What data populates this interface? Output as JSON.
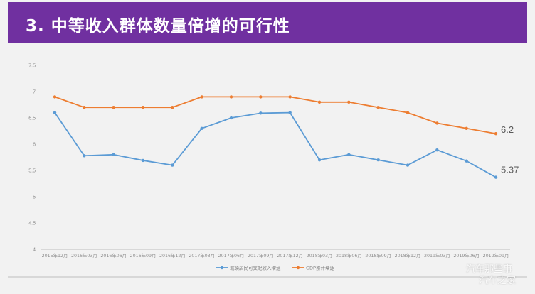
{
  "header": {
    "title": "3. 中等收入群体数量倍增的可行性"
  },
  "watermark": {
    "line1": "汽车那些事",
    "line2": "汽车之家"
  },
  "colors": {
    "header_bg": "#7030a0",
    "series_blue": "#5b9bd5",
    "series_orange": "#ed7d31"
  },
  "chart_data": {
    "type": "line",
    "categories": [
      "2015年12月",
      "2016年03月",
      "2016年06月",
      "2016年09月",
      "2016年12月",
      "2017年03月",
      "2017年06月",
      "2017年09月",
      "2017年12月",
      "2018年03月",
      "2018年06月",
      "2018年09月",
      "2018年12月",
      "2019年03月",
      "2019年06月",
      "2019年09月"
    ],
    "ylim": [
      4,
      7.5
    ],
    "yticks": [
      "4",
      "4.5",
      "5",
      "5.5",
      "6",
      "6.5",
      "7",
      "7.5"
    ],
    "grid": false,
    "legend_position": "bottom",
    "series": [
      {
        "name": "城镇居民可支配收入增速",
        "color": "#5b9bd5",
        "values": [
          6.6,
          5.78,
          5.8,
          5.69,
          5.6,
          6.3,
          6.5,
          6.59,
          6.6,
          5.7,
          5.8,
          5.7,
          5.6,
          5.89,
          5.68,
          5.37
        ],
        "end_label": "5.37"
      },
      {
        "name": "GDP累计增速",
        "color": "#ed7d31",
        "values": [
          6.9,
          6.7,
          6.7,
          6.7,
          6.7,
          6.9,
          6.9,
          6.9,
          6.9,
          6.8,
          6.8,
          6.7,
          6.6,
          6.4,
          6.3,
          6.2
        ],
        "end_label": "6.2"
      }
    ]
  }
}
